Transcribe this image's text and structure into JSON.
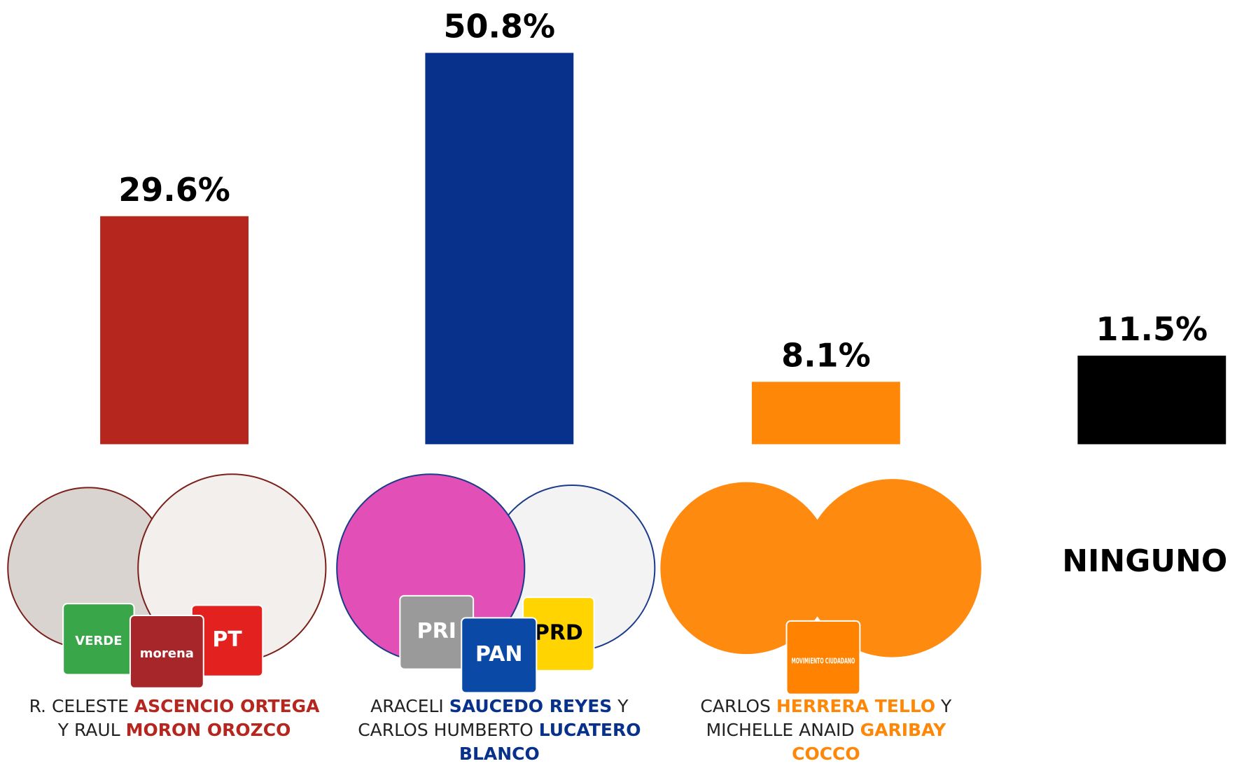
{
  "chart_data": {
    "type": "bar",
    "categories": [
      [
        "R. CELESTE ",
        "ASCENCIO ORTEGA",
        " Y RAUL ",
        "MORON OROZCO"
      ],
      [
        "ARACELI ",
        "SAUCEDO REYES",
        " Y CARLOS HUMBERTO ",
        "LUCATERO BLANCO"
      ],
      [
        "CARLOS ",
        "HERRERA TELLO",
        " Y MICHELLE ANAID ",
        "GARIBAY COCCO"
      ],
      "NINGUNO"
    ],
    "values": [
      29.6,
      50.8,
      8.1,
      11.5
    ],
    "value_labels": [
      "29.6%",
      "50.8%",
      "8.1%",
      "11.5%"
    ],
    "colors": [
      "#b5261e",
      "#08318c",
      "#ff8707",
      "#000000"
    ]
  },
  "party_logos": [
    [
      {
        "text": "VERDE",
        "color": "#3aa64a"
      },
      {
        "text": "PT",
        "color": "#e3211f"
      },
      {
        "text": "morena",
        "color": "#a6262a"
      }
    ],
    [
      {
        "text": "PRI",
        "color": "#9a9a9a"
      },
      {
        "text": "PRD",
        "color": "#ffd400"
      },
      {
        "text": "PAN",
        "color": "#0a4aa6"
      }
    ],
    [
      {
        "text": "MOVIMIENTO CIUDADANO",
        "color": "#ff8300"
      }
    ]
  ]
}
